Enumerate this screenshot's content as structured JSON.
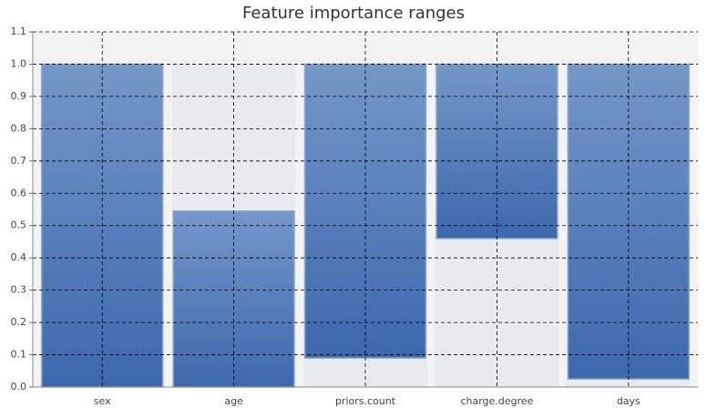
{
  "chart_data": {
    "type": "range-bar",
    "title": "Feature importance ranges",
    "categories": [
      "sex",
      "age",
      "priors.count",
      "charge.degree",
      "days"
    ],
    "ranges": [
      [
        0,
        1.0
      ],
      [
        0,
        0.545
      ],
      [
        0.09,
        1.0
      ],
      [
        0.46,
        1.0
      ],
      [
        0.025,
        1.0
      ]
    ],
    "color": "#4a73b3",
    "ylim": [
      0,
      1.1
    ],
    "yticks": [
      {
        "value": 0,
        "label": "0.0"
      },
      0.1,
      0.2,
      0.3,
      0.4,
      0.5,
      0.6,
      0.7,
      0.8,
      0.9,
      {
        "value": 1,
        "label": "1.0"
      },
      1.1
    ],
    "grid": true
  }
}
